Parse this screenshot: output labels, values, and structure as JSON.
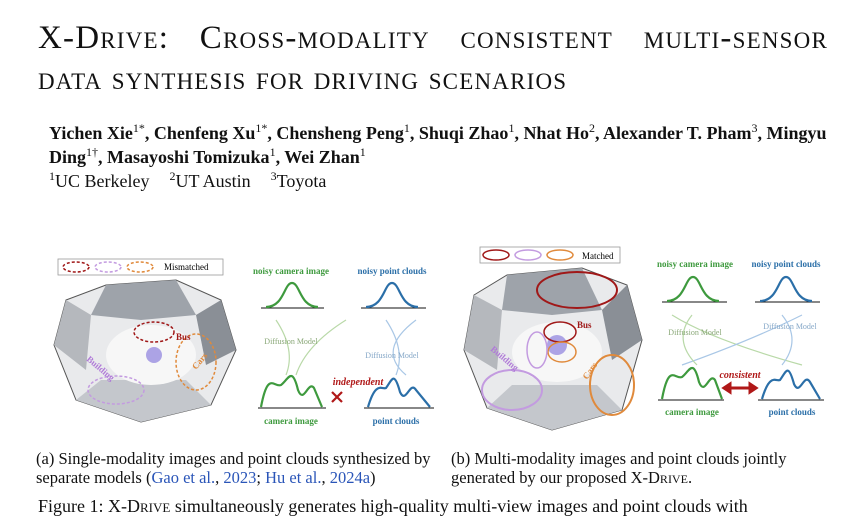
{
  "header": {
    "title": "X-Drive: Cross-modality consistent multi-sensor data synthesis for driving scenarios",
    "authors": [
      {
        "name": "Yichen Xie",
        "sup": "1*"
      },
      {
        "name": "Chenfeng Xu",
        "sup": "1*"
      },
      {
        "name": "Chensheng Peng",
        "sup": "1"
      },
      {
        "name": "Shuqi Zhao",
        "sup": "1"
      },
      {
        "name": "Nhat Ho",
        "sup": "2"
      },
      {
        "name": "Alexander T. Pham",
        "sup": "3"
      },
      {
        "name": "Mingyu Ding",
        "sup": "1†"
      },
      {
        "name": "Masayoshi Tomizuka",
        "sup": "1"
      },
      {
        "name": "Wei Zhan",
        "sup": "1"
      }
    ],
    "affiliations": [
      {
        "sup": "1",
        "name": "UC Berkeley"
      },
      {
        "sup": "2",
        "name": "UT Austin"
      },
      {
        "sup": "3",
        "name": "Toyota"
      }
    ]
  },
  "figure": {
    "panel_a": {
      "legend": "Mismatched",
      "noisy_camera": "noisy camera image",
      "noisy_points": "noisy point clouds",
      "model_left": "Diffusion Model",
      "model_right": "Diffusion Model",
      "relation": "independent",
      "camera": "camera image",
      "points": "point clouds",
      "bus": "Bus",
      "cars": "Cars",
      "building": "Building"
    },
    "panel_b": {
      "legend": "Matched",
      "noisy_camera": "noisy camera image",
      "noisy_points": "noisy point clouds",
      "model_left": "Diffusion Model",
      "model_right": "Diffusion Model",
      "relation": "consistent",
      "camera": "camera image",
      "points": "point clouds",
      "bus": "Bus",
      "cars": "Cars",
      "building": "Building"
    },
    "caption_a": [
      {
        "text": "(a) Single-modality images and point clouds synthesized by separate models ("
      },
      {
        "text": "Gao et al.",
        "color": "#2a55b8"
      },
      {
        "text": ", "
      },
      {
        "text": "2023",
        "color": "#2a55b8"
      },
      {
        "text": "; "
      },
      {
        "text": "Hu et al.",
        "color": "#2a55b8"
      },
      {
        "text": ", "
      },
      {
        "text": "2024a",
        "color": "#2a55b8"
      },
      {
        "text": ")"
      }
    ],
    "caption_b": [
      {
        "text": "(b) Multi-modality images and point clouds jointly generated by our proposed "
      },
      {
        "text": "X-Drive",
        "style": "smallcaps"
      },
      {
        "text": "."
      }
    ],
    "caption_main": [
      {
        "text": "Figure 1: "
      },
      {
        "text": "X-Drive",
        "style": "smallcaps"
      },
      {
        "text": " simultaneously generates high-quality multi-view images and point clouds with"
      }
    ]
  }
}
